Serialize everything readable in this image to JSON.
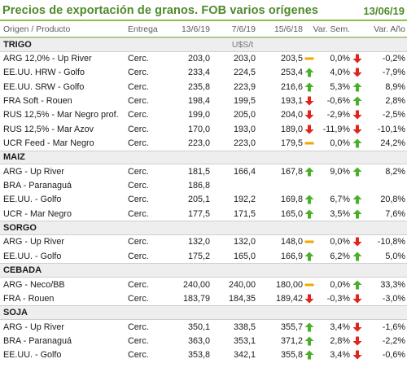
{
  "title": "Precios de exportación de granos. FOB varios orígenes",
  "date": "13/06/19",
  "headers": {
    "product": "Origen / Producto",
    "delivery": "Entrega",
    "d1": "13/6/19",
    "d2": "7/6/19",
    "d3": "15/6/18",
    "var_sem": "Var. Sem.",
    "var_anio": "Var. Año"
  },
  "unit": "U$S/t",
  "colors": {
    "up": "#4caf2a",
    "down": "#e0261c",
    "flat": "#f0a800",
    "accent": "#8cbf4c",
    "title": "#4e8a2a"
  },
  "sections": [
    {
      "name": "TRIGO",
      "rows": [
        {
          "product": "ARG 12,0% - Up River",
          "delivery": "Cerc.",
          "d1": "203,0",
          "d2": "203,0",
          "d3": "203,5",
          "ind1": "flat",
          "var_sem": "0,0%",
          "ind2": "down",
          "var_anio": "-0,2%"
        },
        {
          "product": "EE.UU. HRW - Golfo",
          "delivery": "Cerc.",
          "d1": "233,4",
          "d2": "224,5",
          "d3": "253,4",
          "ind1": "up",
          "var_sem": "4,0%",
          "ind2": "down",
          "var_anio": "-7,9%"
        },
        {
          "product": "EE.UU. SRW - Golfo",
          "delivery": "Cerc.",
          "d1": "235,8",
          "d2": "223,9",
          "d3": "216,6",
          "ind1": "up",
          "var_sem": "5,3%",
          "ind2": "up",
          "var_anio": "8,9%"
        },
        {
          "product": "FRA Soft - Rouen",
          "delivery": "Cerc.",
          "d1": "198,4",
          "d2": "199,5",
          "d3": "193,1",
          "ind1": "down",
          "var_sem": "-0,6%",
          "ind2": "up",
          "var_anio": "2,8%"
        },
        {
          "product": "RUS 12,5% - Mar Negro prof.",
          "delivery": "Cerc.",
          "d1": "199,0",
          "d2": "205,0",
          "d3": "204,0",
          "ind1": "down",
          "var_sem": "-2,9%",
          "ind2": "down",
          "var_anio": "-2,5%"
        },
        {
          "product": "RUS 12,5% - Mar Azov",
          "delivery": "Cerc.",
          "d1": "170,0",
          "d2": "193,0",
          "d3": "189,0",
          "ind1": "down",
          "var_sem": "-11,9%",
          "ind2": "down",
          "var_anio": "-10,1%"
        },
        {
          "product": "UCR Feed - Mar Negro",
          "delivery": "Cerc.",
          "d1": "223,0",
          "d2": "223,0",
          "d3": "179,5",
          "ind1": "flat",
          "var_sem": "0,0%",
          "ind2": "up",
          "var_anio": "24,2%"
        }
      ]
    },
    {
      "name": "MAIZ",
      "rows": [
        {
          "product": "ARG - Up River",
          "delivery": "Cerc.",
          "d1": "181,5",
          "d2": "166,4",
          "d3": "167,8",
          "ind1": "up",
          "var_sem": "9,0%",
          "ind2": "up",
          "var_anio": "8,2%"
        },
        {
          "product": "BRA - Paranaguá",
          "delivery": "Cerc.",
          "d1": "186,8",
          "d2": "",
          "d3": "",
          "ind1": "",
          "var_sem": "",
          "ind2": "",
          "var_anio": ""
        },
        {
          "product": "EE.UU. - Golfo",
          "delivery": "Cerc.",
          "d1": "205,1",
          "d2": "192,2",
          "d3": "169,8",
          "ind1": "up",
          "var_sem": "6,7%",
          "ind2": "up",
          "var_anio": "20,8%"
        },
        {
          "product": "UCR - Mar Negro",
          "delivery": "Cerc.",
          "d1": "177,5",
          "d2": "171,5",
          "d3": "165,0",
          "ind1": "up",
          "var_sem": "3,5%",
          "ind2": "up",
          "var_anio": "7,6%"
        }
      ]
    },
    {
      "name": "SORGO",
      "rows": [
        {
          "product": "ARG - Up River",
          "delivery": "Cerc.",
          "d1": "132,0",
          "d2": "132,0",
          "d3": "148,0",
          "ind1": "flat",
          "var_sem": "0,0%",
          "ind2": "down",
          "var_anio": "-10,8%"
        },
        {
          "product": "EE.UU. - Golfo",
          "delivery": "Cerc.",
          "d1": "175,2",
          "d2": "165,0",
          "d3": "166,9",
          "ind1": "up",
          "var_sem": "6,2%",
          "ind2": "up",
          "var_anio": "5,0%"
        }
      ]
    },
    {
      "name": "CEBADA",
      "rows": [
        {
          "product": "ARG - Neco/BB",
          "delivery": "Cerc.",
          "d1": "240,00",
          "d2": "240,00",
          "d3": "180,00",
          "ind1": "flat",
          "var_sem": "0,0%",
          "ind2": "up",
          "var_anio": "33,3%"
        },
        {
          "product": "FRA - Rouen",
          "delivery": "Cerc.",
          "d1": "183,79",
          "d2": "184,35",
          "d3": "189,42",
          "ind1": "down",
          "var_sem": "-0,3%",
          "ind2": "down",
          "var_anio": "-3,0%"
        }
      ]
    },
    {
      "name": "SOJA",
      "rows": [
        {
          "product": "ARG - Up River",
          "delivery": "Cerc.",
          "d1": "350,1",
          "d2": "338,5",
          "d3": "355,7",
          "ind1": "up",
          "var_sem": "3,4%",
          "ind2": "down",
          "var_anio": "-1,6%"
        },
        {
          "product": "BRA - Paranaguá",
          "delivery": "Cerc.",
          "d1": "363,0",
          "d2": "353,1",
          "d3": "371,2",
          "ind1": "up",
          "var_sem": "2,8%",
          "ind2": "down",
          "var_anio": "-2,2%"
        },
        {
          "product": "EE.UU. - Golfo",
          "delivery": "Cerc.",
          "d1": "353,8",
          "d2": "342,1",
          "d3": "355,8",
          "ind1": "up",
          "var_sem": "3,4%",
          "ind2": "down",
          "var_anio": "-0,6%"
        }
      ]
    }
  ]
}
